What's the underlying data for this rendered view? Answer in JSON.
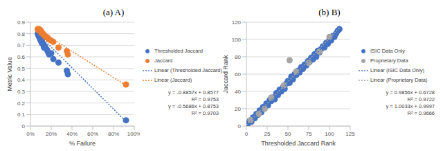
{
  "chart_data": [
    {
      "type": "scatter",
      "title": "(a) A)",
      "x_label": "% Failure",
      "y_label": "Metric Value",
      "xlim": [
        0,
        1
      ],
      "xticks": [
        {
          "value": 0,
          "label": "0%"
        },
        {
          "value": 0.2,
          "label": "20%"
        },
        {
          "value": 0.4,
          "label": "40%"
        },
        {
          "value": 0.6,
          "label": "60%"
        },
        {
          "value": 0.8,
          "label": "80%"
        },
        {
          "value": 1,
          "label": "100%"
        }
      ],
      "ylim": [
        0,
        0.9
      ],
      "yticks": [
        0,
        0.1,
        0.2,
        0.3,
        0.4,
        0.5,
        0.6,
        0.7,
        0.8,
        0.9
      ],
      "grid": true,
      "legend": "right",
      "series": [
        {
          "name": "Thresholded Jaccard",
          "color": "#4472c4",
          "marker": "circle",
          "x": [
            0.07,
            0.075,
            0.08,
            0.085,
            0.09,
            0.09,
            0.095,
            0.1,
            0.1,
            0.105,
            0.11,
            0.11,
            0.115,
            0.12,
            0.125,
            0.13,
            0.13,
            0.14,
            0.15,
            0.16,
            0.17,
            0.18,
            0.2,
            0.22,
            0.27,
            0.35,
            0.36,
            0.92
          ],
          "values": [
            0.8,
            0.79,
            0.78,
            0.77,
            0.78,
            0.76,
            0.75,
            0.76,
            0.74,
            0.73,
            0.74,
            0.72,
            0.72,
            0.71,
            0.7,
            0.7,
            0.68,
            0.69,
            0.67,
            0.66,
            0.64,
            0.62,
            0.63,
            0.58,
            0.55,
            0.48,
            0.45,
            0.05
          ]
        },
        {
          "name": "Jaccard",
          "color": "#ed7d31",
          "marker": "circle",
          "x": [
            0.07,
            0.075,
            0.08,
            0.085,
            0.09,
            0.09,
            0.095,
            0.1,
            0.1,
            0.105,
            0.11,
            0.11,
            0.115,
            0.12,
            0.125,
            0.13,
            0.13,
            0.14,
            0.15,
            0.16,
            0.17,
            0.18,
            0.2,
            0.22,
            0.27,
            0.35,
            0.36,
            0.92
          ],
          "values": [
            0.84,
            0.835,
            0.84,
            0.83,
            0.835,
            0.82,
            0.83,
            0.82,
            0.81,
            0.82,
            0.81,
            0.8,
            0.8,
            0.8,
            0.79,
            0.79,
            0.78,
            0.78,
            0.77,
            0.77,
            0.76,
            0.75,
            0.74,
            0.73,
            0.68,
            0.65,
            0.62,
            0.36
          ]
        },
        {
          "name": "Linear (Thresholded Jaccard)",
          "color": "#4472c4",
          "type": "line",
          "line_style": "dotted",
          "x": [
            0.07,
            0.92
          ],
          "values": [
            0.8,
            0.04
          ]
        },
        {
          "name": "Linear (Jaccard)",
          "color": "#ed7d31",
          "type": "line",
          "line_style": "dotted",
          "x": [
            0.07,
            0.92
          ],
          "values": [
            0.835,
            0.352
          ]
        }
      ],
      "annotations": [
        "y = -0.8857x + 0.8577",
        "R² = 0.9753",
        "y = -0.5686x + 0.8753",
        "R² = 0.9703"
      ]
    },
    {
      "type": "scatter",
      "title": "(b) B)",
      "x_label": "Thresholded Jaccard Rank",
      "y_label": "Jaccard Rank",
      "xlim": [
        0,
        125
      ],
      "xticks": [
        0,
        25,
        50,
        75,
        100,
        125
      ],
      "ylim": [
        0,
        120
      ],
      "yticks": [
        0,
        20,
        40,
        60,
        80,
        100,
        120
      ],
      "grid": true,
      "legend": "right",
      "series": [
        {
          "name": "ISIC Data Only",
          "color": "#4472c4",
          "marker": "circle",
          "x": [
            2,
            4,
            6,
            8,
            10,
            12,
            14,
            16,
            18,
            20,
            22,
            24,
            26,
            28,
            30,
            32,
            34,
            36,
            38,
            40,
            42,
            44,
            46,
            48,
            50,
            52,
            54,
            56,
            58,
            60,
            62,
            64,
            66,
            68,
            70,
            72,
            74,
            76,
            78,
            80,
            82,
            84,
            86,
            88,
            90,
            92,
            94,
            96,
            98,
            100,
            102,
            104,
            106,
            108,
            110,
            112
          ],
          "values": [
            3,
            6,
            5,
            10,
            9,
            14,
            13,
            18,
            16,
            22,
            21,
            26,
            24,
            30,
            29,
            33,
            31,
            38,
            36,
            42,
            40,
            45,
            43,
            49,
            52,
            50,
            57,
            54,
            60,
            59,
            64,
            62,
            68,
            66,
            71,
            70,
            75,
            74,
            79,
            77,
            83,
            80,
            87,
            85,
            89,
            92,
            91,
            96,
            95,
            100,
            99,
            104,
            103,
            107,
            110,
            112
          ]
        },
        {
          "name": "Proprietary Data",
          "color": "#a5a5a5",
          "marker": "circle",
          "x": [
            5,
            15,
            22,
            30,
            45,
            52,
            60,
            75,
            88,
            100
          ],
          "values": [
            7,
            14,
            20,
            33,
            47,
            76,
            63,
            73,
            86,
            103
          ]
        },
        {
          "name": "Linear (ISIC Data Only)",
          "color": "#4472c4",
          "type": "line",
          "line_style": "dotted",
          "x": [
            0,
            112
          ],
          "values": [
            0.67,
            111.06
          ]
        },
        {
          "name": "Linear (Proprietary Data)",
          "color": "#a5a5a5",
          "type": "line",
          "line_style": "dotted",
          "x": [
            0,
            112
          ],
          "values": [
            1.0,
            113.4
          ]
        }
      ],
      "annotations": [
        "y = 0.9856x + 0.6728",
        "R² = 0.9722",
        "y = 1.0033x + 0.9997",
        "R² = 0.9666"
      ]
    }
  ]
}
